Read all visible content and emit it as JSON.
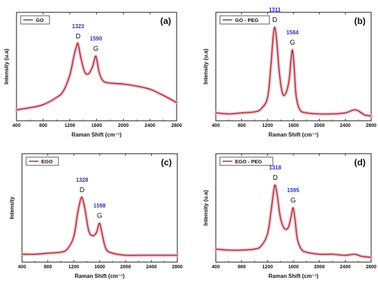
{
  "colors": {
    "trace": "#8b2a10",
    "noise_band": "#f4a8c6",
    "annotation": "#2f2fb8",
    "axis": "#111111"
  },
  "chart_data": [
    {
      "type": "line",
      "panel_label": "(a)",
      "legend": "GO",
      "xlabel": "Raman Shift (cm⁻¹)",
      "ylabel": "Intensity (u.a)",
      "xlim": [
        400,
        2800
      ],
      "ylim": [
        0,
        1
      ],
      "x_ticks": [
        400,
        800,
        1200,
        1600,
        2000,
        2400,
        2800
      ],
      "tick_labels": [
        "400",
        "800",
        "1200",
        "1600",
        "2000",
        "2400",
        "2800"
      ],
      "legend_position": "top-left",
      "grid": false,
      "peaks": [
        {
          "name": "D",
          "position": 1323,
          "position_label": "1323",
          "intensity": 0.72
        },
        {
          "name": "G",
          "position": 1590,
          "position_label": "1590",
          "intensity": 0.6
        }
      ],
      "series": [
        {
          "x": [
            400,
            600,
            800,
            1000,
            1100,
            1200,
            1260,
            1300,
            1323,
            1360,
            1420,
            1480,
            1540,
            1590,
            1640,
            1700,
            1800,
            2000,
            2200,
            2400,
            2600,
            2800
          ],
          "y": [
            0.08,
            0.1,
            0.13,
            0.2,
            0.26,
            0.42,
            0.6,
            0.7,
            0.72,
            0.6,
            0.45,
            0.43,
            0.5,
            0.6,
            0.44,
            0.36,
            0.34,
            0.33,
            0.31,
            0.28,
            0.22,
            0.15
          ]
        }
      ]
    },
    {
      "type": "line",
      "panel_label": "(b)",
      "legend": "GO - PEG",
      "xlabel": "Raman Shift (cm⁻¹)",
      "ylabel": "Intensity (u.a)",
      "xlim": [
        400,
        2800
      ],
      "ylim": [
        0,
        1
      ],
      "x_ticks": [
        400,
        800,
        1200,
        1600,
        2000,
        2400,
        2800
      ],
      "tick_labels": [
        "400",
        "800",
        "1200",
        "1600",
        "2000",
        "2400",
        "2800"
      ],
      "legend_position": "top-left",
      "grid": false,
      "peaks": [
        {
          "name": "D",
          "position": 1311,
          "position_label": "1311",
          "intensity": 0.88
        },
        {
          "name": "G",
          "position": 1584,
          "position_label": "1584",
          "intensity": 0.66
        }
      ],
      "series": [
        {
          "x": [
            400,
            600,
            800,
            1000,
            1100,
            1200,
            1250,
            1285,
            1311,
            1340,
            1380,
            1430,
            1480,
            1530,
            1560,
            1584,
            1610,
            1640,
            1700,
            1800,
            2000,
            2200,
            2400,
            2550,
            2650,
            2700,
            2800
          ],
          "y": [
            0.05,
            0.04,
            0.05,
            0.06,
            0.09,
            0.2,
            0.5,
            0.78,
            0.88,
            0.76,
            0.45,
            0.24,
            0.24,
            0.36,
            0.55,
            0.66,
            0.5,
            0.22,
            0.08,
            0.05,
            0.04,
            0.04,
            0.05,
            0.08,
            0.05,
            0.03,
            0.02
          ]
        }
      ]
    },
    {
      "type": "line",
      "panel_label": "(c)",
      "legend": "EGO",
      "xlabel": "Raman Shift (cm⁻¹)",
      "ylabel": "Intensity",
      "xlim": [
        400,
        2800
      ],
      "ylim": [
        0,
        1
      ],
      "x_ticks": [
        400,
        800,
        1200,
        1600,
        2000,
        2400,
        2800
      ],
      "tick_labels": [
        "400",
        "800",
        "1200",
        "1600",
        "2000",
        "2400",
        "2800"
      ],
      "legend_position": "top-left",
      "grid": false,
      "peaks": [
        {
          "name": "D",
          "position": 1328,
          "position_label": "1328",
          "intensity": 0.6
        },
        {
          "name": "G",
          "position": 1598,
          "position_label": "1598",
          "intensity": 0.35
        }
      ],
      "series": [
        {
          "x": [
            400,
            600,
            800,
            1000,
            1100,
            1200,
            1260,
            1300,
            1328,
            1370,
            1430,
            1490,
            1550,
            1598,
            1640,
            1700,
            1800,
            2000,
            2200,
            2400,
            2600,
            2800
          ],
          "y": [
            0.05,
            0.05,
            0.06,
            0.07,
            0.1,
            0.22,
            0.45,
            0.57,
            0.6,
            0.5,
            0.28,
            0.23,
            0.26,
            0.35,
            0.24,
            0.1,
            0.06,
            0.04,
            0.04,
            0.04,
            0.04,
            0.04
          ]
        }
      ]
    },
    {
      "type": "line",
      "panel_label": "(d)",
      "legend": "EGO - PEG",
      "xlabel": "Raman Shift (cm⁻¹)",
      "ylabel": "Intensity (u.a)",
      "xlim": [
        400,
        2800
      ],
      "ylim": [
        0,
        1
      ],
      "x_ticks": [
        400,
        800,
        1200,
        1600,
        2000,
        2400,
        2800
      ],
      "tick_labels": [
        "400",
        "800",
        "1200",
        "1600",
        "2000",
        "2400",
        "2800"
      ],
      "legend_position": "top-left",
      "grid": false,
      "peaks": [
        {
          "name": "D",
          "position": 1318,
          "position_label": "1318",
          "intensity": 0.72
        },
        {
          "name": "G",
          "position": 1595,
          "position_label": "1595",
          "intensity": 0.5
        }
      ],
      "series": [
        {
          "x": [
            400,
            600,
            800,
            1000,
            1100,
            1200,
            1260,
            1295,
            1318,
            1350,
            1400,
            1460,
            1520,
            1565,
            1595,
            1625,
            1660,
            1720,
            1800,
            2000,
            2200,
            2400,
            2550,
            2650,
            2800
          ],
          "y": [
            0.1,
            0.09,
            0.09,
            0.1,
            0.13,
            0.25,
            0.5,
            0.67,
            0.72,
            0.62,
            0.4,
            0.3,
            0.31,
            0.42,
            0.5,
            0.38,
            0.2,
            0.1,
            0.07,
            0.05,
            0.05,
            0.04,
            0.05,
            0.03,
            0.02
          ]
        }
      ]
    }
  ]
}
